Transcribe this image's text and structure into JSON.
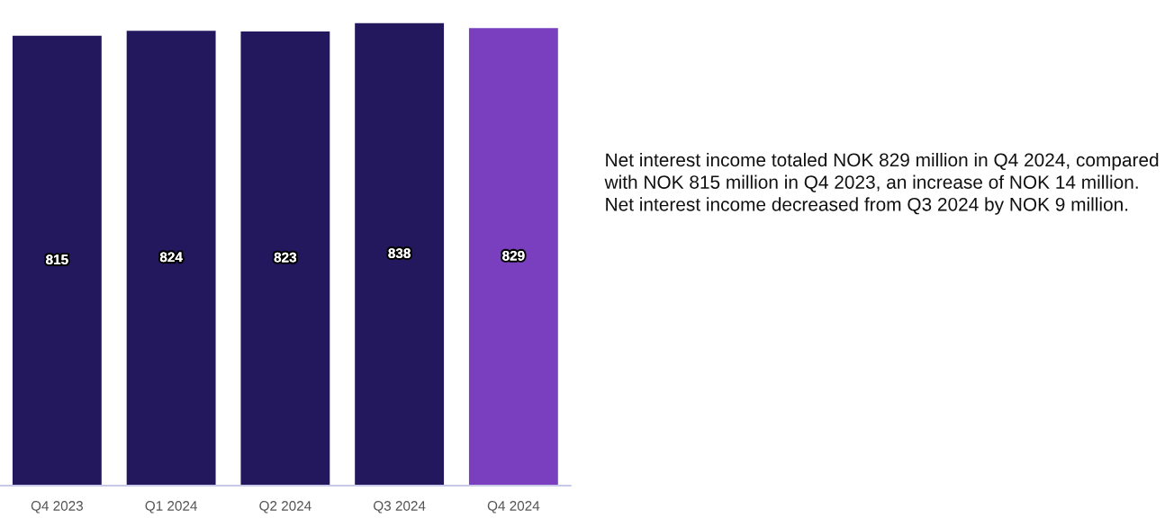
{
  "chart_data": {
    "type": "bar",
    "categories": [
      "Q4 2023",
      "Q1 2024",
      "Q2 2024",
      "Q3 2024",
      "Q4 2024"
    ],
    "values": [
      815,
      824,
      823,
      838,
      829
    ],
    "colors": [
      "#23175e",
      "#23175e",
      "#23175e",
      "#23175e",
      "#7a3fbf"
    ],
    "data_labels": true,
    "tick_labels": "x",
    "grid": false,
    "annotations": [
      "Net interest income totaled NOK 829 million in Q4 2024, compared with NOK 815 million in Q4 2023, an increase of NOK 14 million. Net interest income decreased from Q3 2024 by NOK 9 million."
    ]
  }
}
